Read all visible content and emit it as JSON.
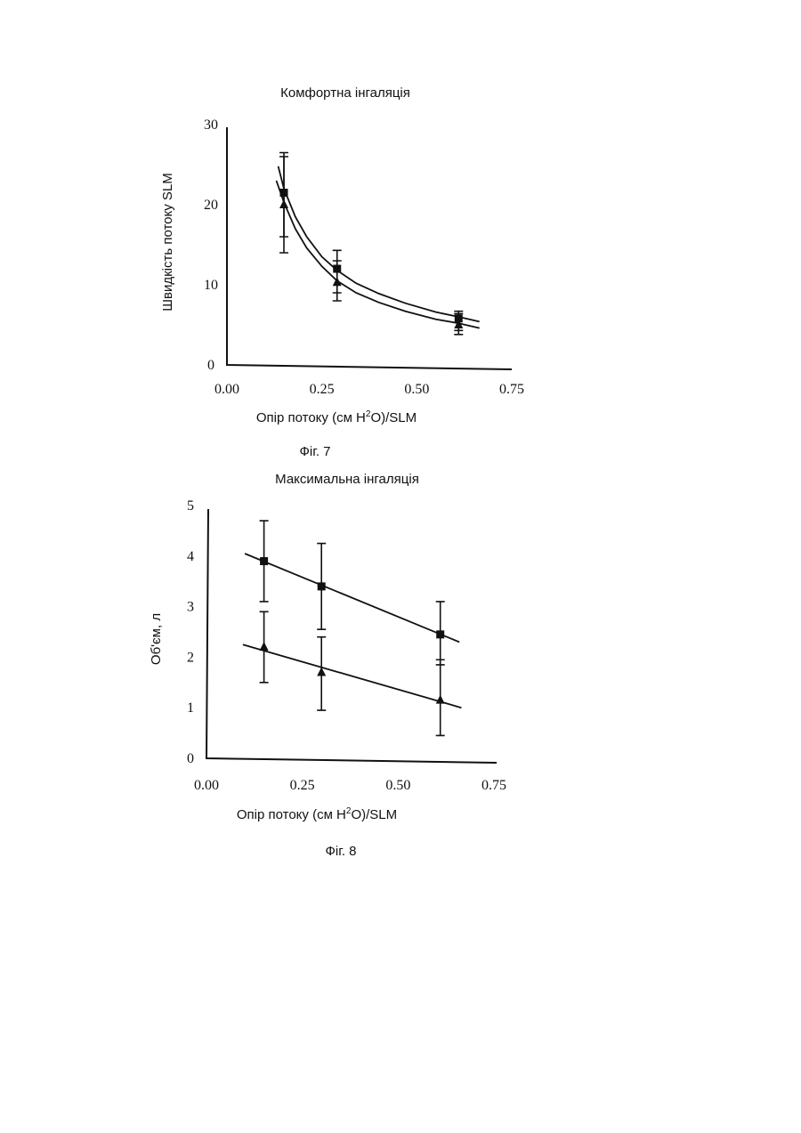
{
  "chart_data": [
    {
      "type": "line",
      "title": "Комфортна інгаляція",
      "xlabel_pre": "Опір потоку  (см H",
      "xlabel_sup": "2",
      "xlabel_post": "O)/SLM",
      "ylabel": "Швидкість потоку  SLM",
      "caption": "Фіг. 7",
      "xlim": [
        0,
        0.75
      ],
      "ylim": [
        0,
        30
      ],
      "xticks": [
        "0.00",
        "0.25",
        "0.50",
        "0.75"
      ],
      "yticks": [
        "0",
        "10",
        "20",
        "30"
      ],
      "series": [
        {
          "marker": "square",
          "x": [
            0.15,
            0.29,
            0.61
          ],
          "y": [
            21.5,
            12,
            5.8
          ],
          "err_low": [
            14,
            9,
            4.3
          ],
          "err_high": [
            26.5,
            14.3,
            6.7
          ],
          "fit_x": [
            0.135,
            0.15,
            0.18,
            0.21,
            0.25,
            0.29,
            0.34,
            0.4,
            0.47,
            0.55,
            0.61,
            0.665
          ],
          "fit_y": [
            24.8,
            22,
            18.5,
            16,
            13.5,
            11.8,
            10.2,
            8.9,
            7.7,
            6.6,
            6.0,
            5.4
          ]
        },
        {
          "marker": "triangle",
          "x": [
            0.15,
            0.29,
            0.61
          ],
          "y": [
            20,
            10.3,
            5.0
          ],
          "err_low": [
            16,
            8,
            3.8
          ],
          "err_high": [
            26,
            13,
            6.4
          ],
          "fit_x": [
            0.13,
            0.15,
            0.18,
            0.21,
            0.25,
            0.29,
            0.34,
            0.4,
            0.47,
            0.55,
            0.61,
            0.665
          ],
          "fit_y": [
            23,
            20.3,
            17,
            14.6,
            12.3,
            10.5,
            9.0,
            7.8,
            6.7,
            5.7,
            5.2,
            4.6
          ]
        }
      ]
    },
    {
      "type": "line",
      "title": "Максимальна інгаляція",
      "xlabel_pre": "Опір потоку   (см H",
      "xlabel_sup": "2",
      "xlabel_post": "O)/SLM",
      "ylabel": "Об'єм, л",
      "caption": "Фіг. 8",
      "xlim": [
        0,
        0.75
      ],
      "ylim": [
        0,
        5
      ],
      "xticks": [
        "0.00",
        "0.25",
        "0.50",
        "0.75"
      ],
      "yticks": [
        "0",
        "1",
        "2",
        "3",
        "4",
        "5"
      ],
      "series": [
        {
          "marker": "square",
          "x": [
            0.15,
            0.3,
            0.61
          ],
          "y": [
            3.9,
            3.4,
            2.45
          ],
          "err_low": [
            3.1,
            2.55,
            1.85
          ],
          "err_high": [
            4.7,
            4.25,
            3.1
          ],
          "fit_x": [
            0.1,
            0.66
          ],
          "fit_y": [
            4.05,
            2.3
          ]
        },
        {
          "marker": "triangle",
          "x": [
            0.15,
            0.3,
            0.61
          ],
          "y": [
            2.2,
            1.7,
            1.15
          ],
          "err_low": [
            1.5,
            0.95,
            0.45
          ],
          "err_high": [
            2.9,
            2.4,
            1.95
          ],
          "fit_x": [
            0.095,
            0.665
          ],
          "fit_y": [
            2.25,
            1.0
          ]
        }
      ]
    }
  ]
}
